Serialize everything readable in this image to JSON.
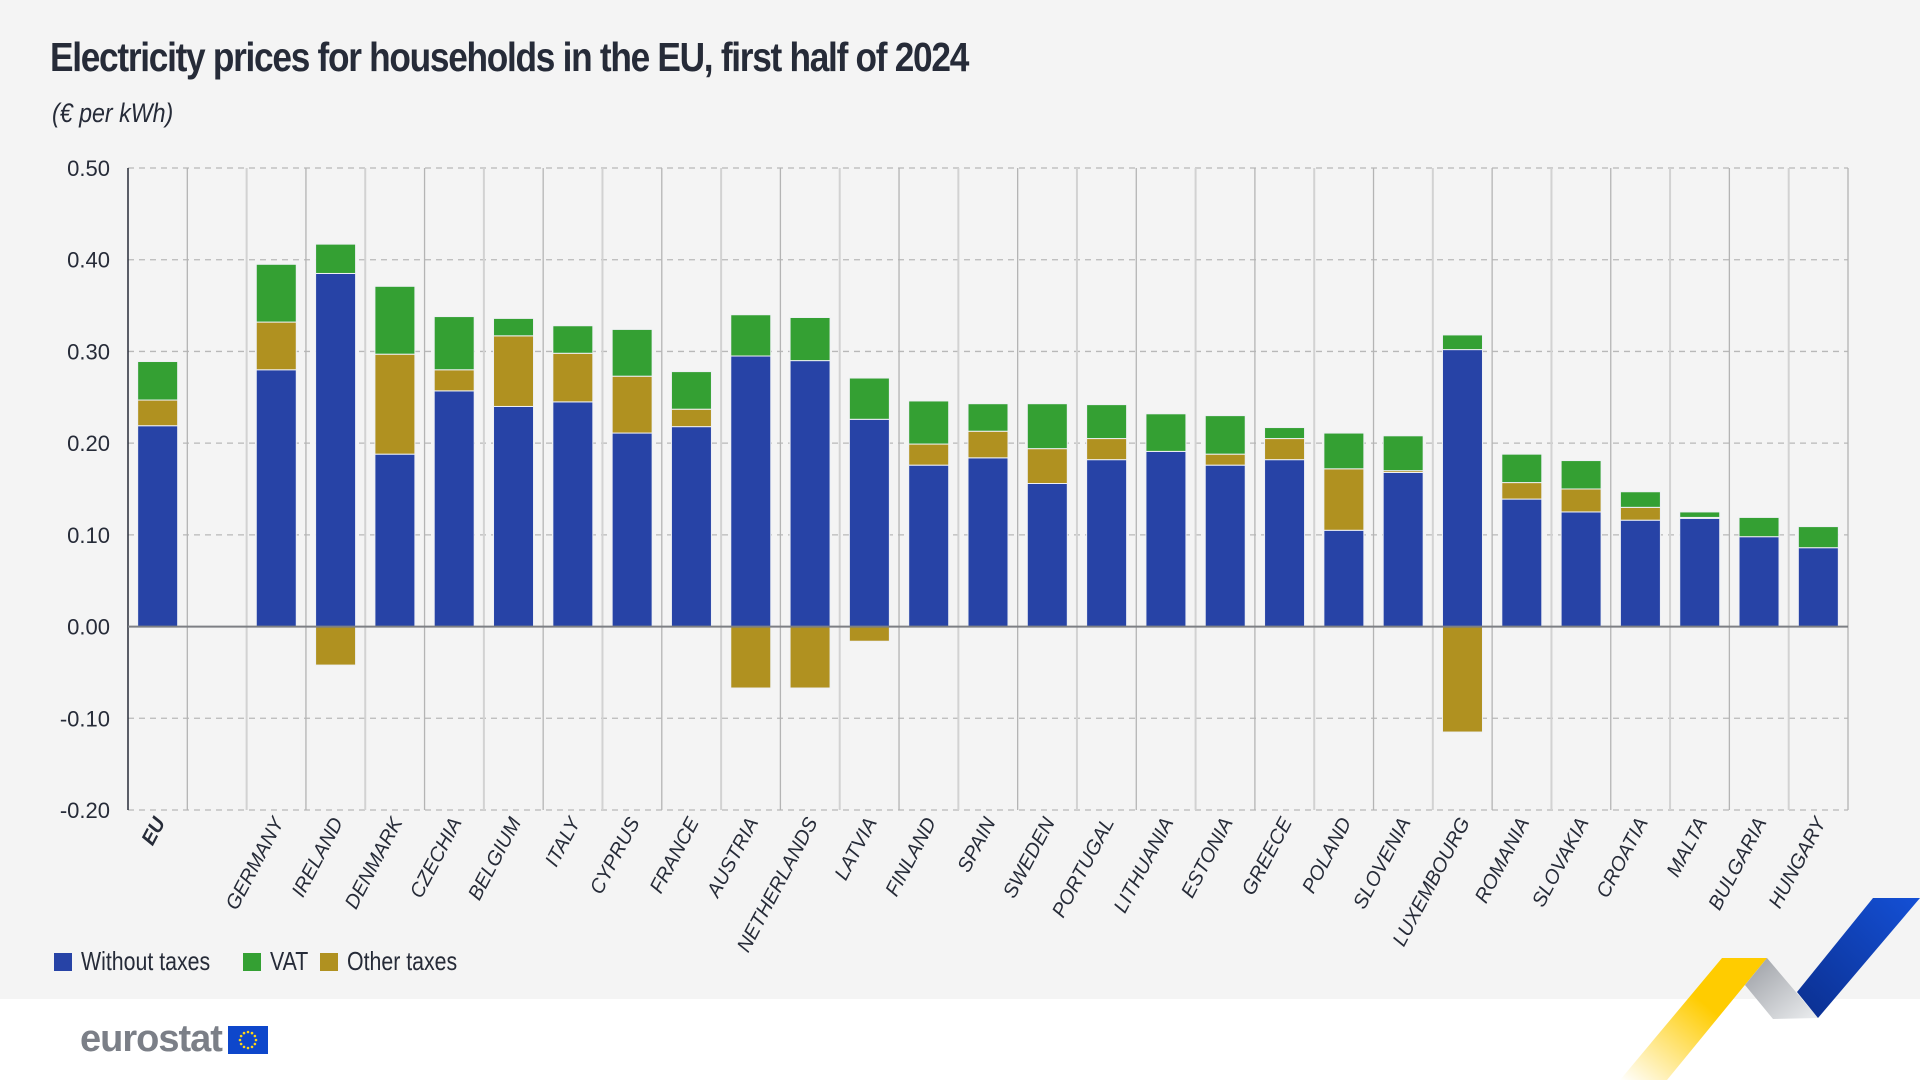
{
  "header": {
    "title": "Electricity prices for households in the EU, first half of 2024",
    "unit": "(€ per kWh)"
  },
  "legend": [
    {
      "label": "Without taxes",
      "color": "#2743a6"
    },
    {
      "label": "VAT",
      "color": "#34a033"
    },
    {
      "label": "Other taxes",
      "color": "#b09120"
    }
  ],
  "logo": {
    "text": "eurostat",
    "icon": "eu-flag-icon"
  },
  "chart_data": {
    "type": "bar",
    "stacked": true,
    "title": "Electricity prices for households in the EU, first half of 2024",
    "subtitle": "(€ per kWh)",
    "xlabel": "",
    "ylabel": "€ per kWh",
    "ylim": [
      -0.2,
      0.5
    ],
    "yticks": [
      "0.50",
      "0.40",
      "0.30",
      "0.20",
      "0.10",
      "0.00",
      "-0.10",
      "-0.20"
    ],
    "ytick_values": [
      0.5,
      0.4,
      0.3,
      0.2,
      0.1,
      0.0,
      -0.1,
      -0.2
    ],
    "grid": true,
    "legend_position": "bottom-left",
    "categories": [
      "EU",
      "",
      "GERMANY",
      "IRELAND",
      "DENMARK",
      "CZECHIA",
      "BELGIUM",
      "ITALY",
      "CYPRUS",
      "FRANCE",
      "AUSTRIA",
      "NETHERLANDS",
      "LATVIA",
      "FINLAND",
      "SPAIN",
      "SWEDEN",
      "PORTUGAL",
      "LITHUANIA",
      "ESTONIA",
      "GREECE",
      "POLAND",
      "SLOVENIA",
      "LUXEMBOURG",
      "ROMANIA",
      "SLOVAKIA",
      "CROATIA",
      "MALTA",
      "BULGARIA",
      "HUNGARY"
    ],
    "bold_categories": [
      "EU"
    ],
    "series": [
      {
        "name": "Without taxes",
        "color": "#2743a6",
        "values": [
          0.219,
          null,
          0.28,
          0.385,
          0.188,
          0.257,
          0.24,
          0.245,
          0.211,
          0.218,
          0.295,
          0.29,
          0.226,
          0.176,
          0.184,
          0.156,
          0.182,
          0.191,
          0.176,
          0.182,
          0.105,
          0.168,
          0.302,
          0.139,
          0.125,
          0.116,
          0.118,
          0.098,
          0.086
        ]
      },
      {
        "name": "Other taxes",
        "color": "#b09120",
        "values": [
          0.028,
          null,
          0.052,
          -0.042,
          0.109,
          0.023,
          0.077,
          0.053,
          0.062,
          0.019,
          -0.067,
          -0.067,
          -0.016,
          0.023,
          0.029,
          0.038,
          0.023,
          0.0,
          0.012,
          0.023,
          0.067,
          0.002,
          -0.115,
          0.018,
          0.025,
          0.014,
          0.001,
          0.0,
          0.0
        ]
      },
      {
        "name": "VAT",
        "color": "#34a033",
        "values": [
          0.042,
          null,
          0.063,
          0.032,
          0.074,
          0.058,
          0.019,
          0.03,
          0.051,
          0.041,
          0.045,
          0.047,
          0.045,
          0.047,
          0.03,
          0.049,
          0.037,
          0.041,
          0.042,
          0.012,
          0.039,
          0.038,
          0.016,
          0.031,
          0.031,
          0.017,
          0.006,
          0.021,
          0.023
        ]
      }
    ]
  }
}
